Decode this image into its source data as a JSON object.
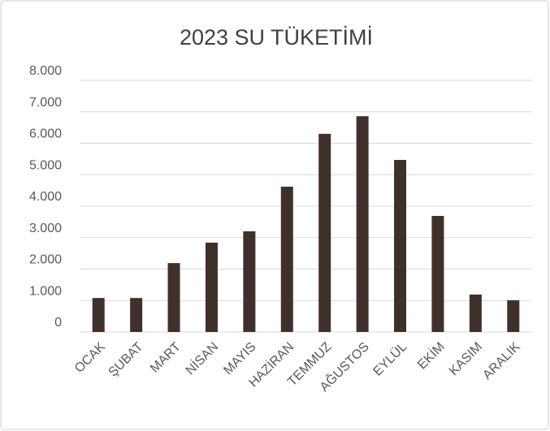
{
  "chart_data": {
    "type": "bar",
    "title": "2023 SU TÜKETİMİ",
    "categories": [
      "OCAK",
      "ŞUBAT",
      "MART",
      "NİSAN",
      "MAYIS",
      "HAZİRAN",
      "TEMMUZ",
      "AĞUSTOS",
      "EYLÜL",
      "EKİM",
      "KASIM",
      "ARALIK"
    ],
    "values": [
      1080,
      1080,
      2190,
      2840,
      3200,
      4620,
      6300,
      6860,
      5470,
      3690,
      1190,
      1010
    ],
    "color": "#40302b",
    "ylim": [
      0,
      8000
    ],
    "yticks": [
      0,
      {
        "value": 1000,
        "label": "1.000"
      },
      {
        "value": 2000,
        "label": "2.000"
      },
      {
        "value": 3000,
        "label": "3.000"
      },
      {
        "value": 4000,
        "label": "4.000"
      },
      {
        "value": 5000,
        "label": "5.000"
      },
      {
        "value": 6000,
        "label": "6.000"
      },
      {
        "value": 7000,
        "label": "7.000"
      },
      {
        "value": 8000,
        "label": "8.000"
      }
    ],
    "grid": true
  }
}
